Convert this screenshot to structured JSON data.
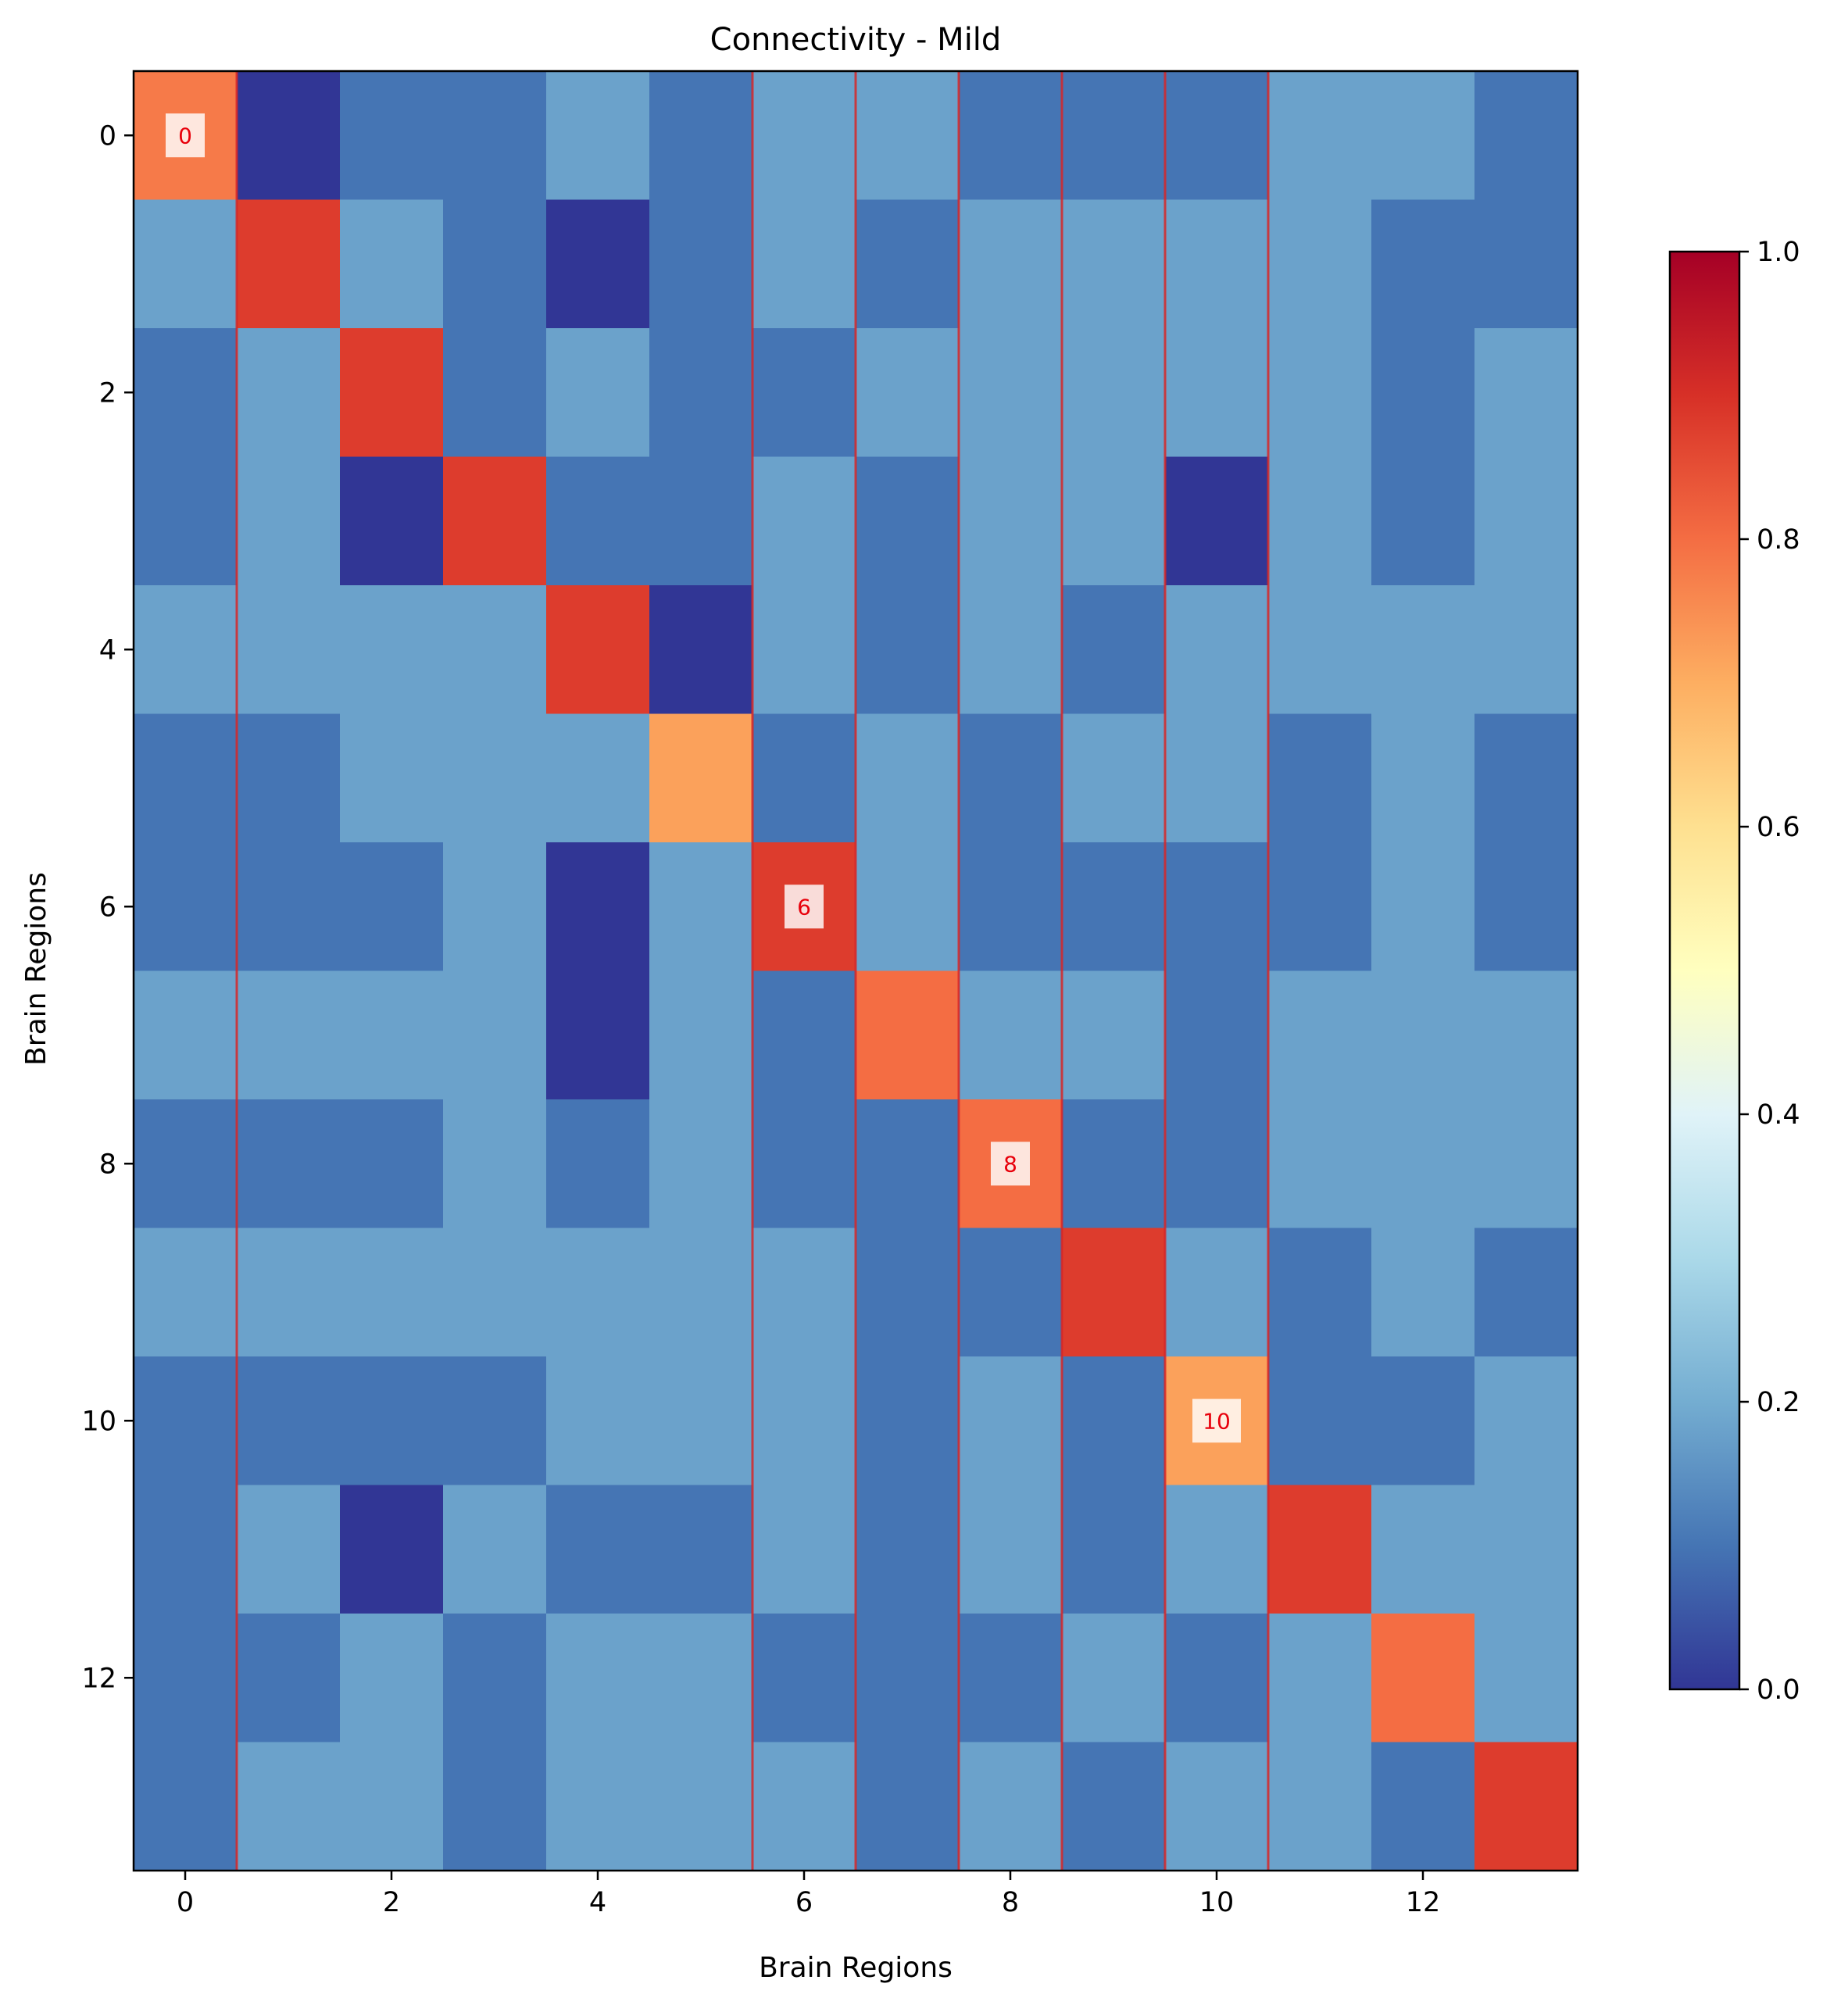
{
  "chart_data": {
    "type": "heatmap",
    "title": "Connectivity - Mild",
    "xlabel": "Brain Regions",
    "ylabel": "Brain Regions",
    "x_ticks": [
      0,
      2,
      4,
      6,
      8,
      10,
      12
    ],
    "y_ticks": [
      0,
      2,
      4,
      6,
      8,
      10,
      12
    ],
    "x_range": [
      -0.5,
      13.5
    ],
    "y_range": [
      -0.5,
      13.5
    ],
    "colormap": "RdYlBu_r",
    "colorbar": {
      "min": 0.0,
      "max": 1.0,
      "ticks": [
        0.0,
        0.2,
        0.4,
        0.6,
        0.8,
        1.0
      ],
      "tick_labels": [
        "0.0",
        "0.2",
        "0.4",
        "0.6",
        "0.8",
        "1.0"
      ]
    },
    "grid": false,
    "values": [
      [
        0.78,
        0.0,
        0.1,
        0.1,
        0.18,
        0.1,
        0.18,
        0.18,
        0.1,
        0.1,
        0.1,
        0.18,
        0.18,
        0.1
      ],
      [
        0.18,
        0.88,
        0.18,
        0.1,
        0.0,
        0.1,
        0.18,
        0.1,
        0.18,
        0.18,
        0.18,
        0.18,
        0.1,
        0.1
      ],
      [
        0.1,
        0.18,
        0.88,
        0.1,
        0.18,
        0.1,
        0.1,
        0.18,
        0.18,
        0.18,
        0.18,
        0.18,
        0.1,
        0.18
      ],
      [
        0.1,
        0.18,
        0.0,
        0.88,
        0.1,
        0.1,
        0.18,
        0.1,
        0.18,
        0.18,
        0.0,
        0.18,
        0.1,
        0.18
      ],
      [
        0.18,
        0.18,
        0.18,
        0.18,
        0.88,
        0.0,
        0.18,
        0.1,
        0.18,
        0.1,
        0.18,
        0.18,
        0.18,
        0.18
      ],
      [
        0.1,
        0.1,
        0.18,
        0.18,
        0.18,
        0.72,
        0.1,
        0.18,
        0.1,
        0.18,
        0.18,
        0.1,
        0.18,
        0.1
      ],
      [
        0.1,
        0.1,
        0.1,
        0.18,
        0.0,
        0.18,
        0.88,
        0.18,
        0.1,
        0.1,
        0.1,
        0.1,
        0.18,
        0.1
      ],
      [
        0.18,
        0.18,
        0.18,
        0.18,
        0.0,
        0.18,
        0.1,
        0.8,
        0.18,
        0.18,
        0.1,
        0.18,
        0.18,
        0.18
      ],
      [
        0.1,
        0.1,
        0.1,
        0.18,
        0.1,
        0.18,
        0.1,
        0.1,
        0.8,
        0.1,
        0.1,
        0.18,
        0.18,
        0.18
      ],
      [
        0.18,
        0.18,
        0.18,
        0.18,
        0.18,
        0.18,
        0.18,
        0.1,
        0.1,
        0.88,
        0.18,
        0.1,
        0.18,
        0.1
      ],
      [
        0.1,
        0.1,
        0.1,
        0.1,
        0.18,
        0.18,
        0.18,
        0.1,
        0.18,
        0.1,
        0.72,
        0.1,
        0.1,
        0.18
      ],
      [
        0.1,
        0.18,
        0.0,
        0.18,
        0.1,
        0.1,
        0.18,
        0.1,
        0.18,
        0.1,
        0.18,
        0.88,
        0.18,
        0.18
      ],
      [
        0.1,
        0.1,
        0.18,
        0.1,
        0.18,
        0.18,
        0.1,
        0.1,
        0.1,
        0.18,
        0.1,
        0.18,
        0.8,
        0.18
      ],
      [
        0.1,
        0.18,
        0.18,
        0.1,
        0.18,
        0.18,
        0.18,
        0.1,
        0.18,
        0.1,
        0.18,
        0.18,
        0.1,
        0.88
      ]
    ],
    "annotations": [
      {
        "row": 0,
        "col": 0,
        "text": "0"
      },
      {
        "row": 6,
        "col": 6,
        "text": "6"
      },
      {
        "row": 8,
        "col": 8,
        "text": "8"
      },
      {
        "row": 10,
        "col": 10,
        "text": "10"
      }
    ],
    "boundaries_after_column": [
      0,
      5,
      6,
      7,
      8,
      9,
      10
    ],
    "annotation_color": "#e8000b",
    "boundary_color": "#d62728"
  }
}
